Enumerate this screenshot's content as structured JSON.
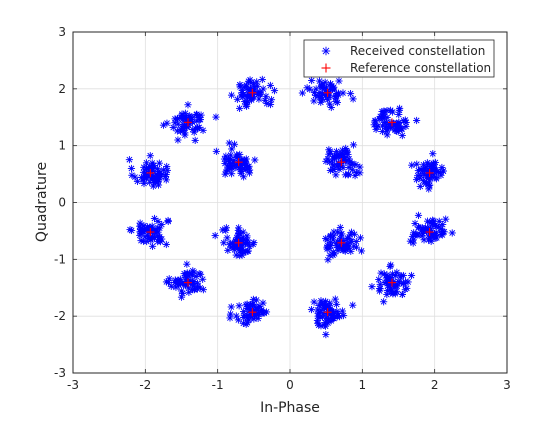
{
  "chart_data": {
    "type": "scatter",
    "title": "",
    "xlabel": "In-Phase",
    "ylabel": "Quadrature",
    "xlim": [
      -3,
      3
    ],
    "ylim": [
      -3,
      3
    ],
    "xticks": [
      "-3",
      "-2",
      "-1",
      "0",
      "1",
      "2",
      "3"
    ],
    "yticks": [
      "-3",
      "-2",
      "-1",
      "0",
      "1",
      "2",
      "3"
    ],
    "grid": true,
    "legend_position": "top-right",
    "series": [
      {
        "name": "Received constellation",
        "marker": "asterisk",
        "color": "#0000ff",
        "cluster_centers": [
          [
            -1.93,
            0.52
          ],
          [
            -1.93,
            -0.52
          ],
          [
            -1.41,
            1.41
          ],
          [
            -1.41,
            -1.41
          ],
          [
            -0.52,
            1.93
          ],
          [
            -0.52,
            -1.93
          ],
          [
            -0.71,
            0.71
          ],
          [
            -0.71,
            -0.71
          ],
          [
            0.52,
            1.93
          ],
          [
            0.52,
            -1.93
          ],
          [
            0.71,
            0.71
          ],
          [
            0.71,
            -0.71
          ],
          [
            1.41,
            1.41
          ],
          [
            1.41,
            -1.41
          ],
          [
            1.93,
            0.52
          ],
          [
            1.93,
            -0.52
          ]
        ],
        "points_per_cluster": 60,
        "cluster_spread": 0.12
      },
      {
        "name": "Reference constellation",
        "marker": "plus",
        "color": "#ff0000",
        "points": [
          [
            -1.93,
            0.52
          ],
          [
            -1.93,
            -0.52
          ],
          [
            -1.41,
            1.41
          ],
          [
            -1.41,
            -1.41
          ],
          [
            -0.52,
            1.93
          ],
          [
            -0.52,
            -1.93
          ],
          [
            -0.71,
            0.71
          ],
          [
            -0.71,
            -0.71
          ],
          [
            0.52,
            1.93
          ],
          [
            0.52,
            -1.93
          ],
          [
            0.71,
            0.71
          ],
          [
            0.71,
            -0.71
          ],
          [
            1.41,
            1.41
          ],
          [
            1.41,
            -1.41
          ],
          [
            1.93,
            0.52
          ],
          [
            1.93,
            -0.52
          ]
        ]
      }
    ]
  }
}
